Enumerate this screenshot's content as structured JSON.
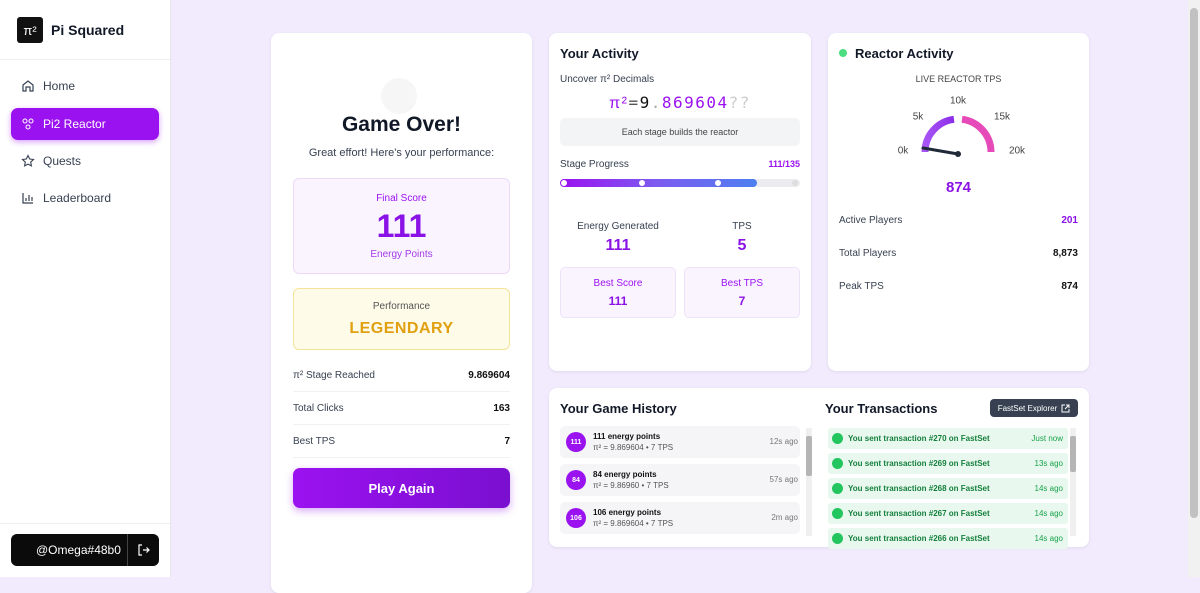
{
  "sidebar": {
    "logo": "π²",
    "brand": "Pi Squared",
    "nav": [
      "Home",
      "Pi2 Reactor",
      "Quests",
      "Leaderboard"
    ],
    "user": "@Omega#48b0"
  },
  "game_over": {
    "title": "Game Over!",
    "subtitle": "Great effort! Here's your performance:",
    "final_score": {
      "label": "Final Score",
      "value": 111,
      "unit": "Energy Points"
    },
    "performance": {
      "label": "Performance",
      "value": "LEGENDARY"
    },
    "stats": [
      {
        "label": "π² Stage Reached",
        "value": "9.869604"
      },
      {
        "label": "Total Clicks",
        "value": 163
      },
      {
        "label": "Best TPS",
        "value": 7
      }
    ],
    "button": "Play Again"
  },
  "activity": {
    "title": "Your Activity",
    "decimals_label": "Uncover π² Decimals",
    "pi_symbol": "π²",
    "equals": "=",
    "integer": "9",
    "dot": ".",
    "decimals": "869604",
    "hidden": "??",
    "hint": "Each stage builds the reactor",
    "progress_label": "Stage Progress",
    "progress": "111/135",
    "energy_label": "Energy Generated",
    "energy": 111,
    "tps_label": "TPS",
    "tps": 5,
    "best_score_label": "Best Score",
    "best_score": 111,
    "best_tps_label": "Best TPS",
    "best_tps": 7
  },
  "reactor": {
    "title": "Reactor Activity",
    "gauge_label": "LIVE REACTOR TPS",
    "gauge_ticks": [
      "0k",
      "5k",
      "10k",
      "15k",
      "20k"
    ],
    "tps": 874,
    "stats": [
      {
        "label": "Active Players",
        "value": 201
      },
      {
        "label": "Total Players",
        "value": "8,873"
      },
      {
        "label": "Peak TPS",
        "value": 874
      }
    ]
  },
  "history": {
    "title": "Your Game History",
    "items": [
      {
        "badge": 111,
        "title": "111 energy points",
        "detail": "π² = 9.869604 • 7 TPS",
        "time": "12s ago"
      },
      {
        "badge": 84,
        "title": "84 energy points",
        "detail": "π² = 9.86960 • 7 TPS",
        "time": "57s ago"
      },
      {
        "badge": 106,
        "title": "106 energy points",
        "detail": "π² = 9.869604 • 7 TPS",
        "time": "2m ago"
      }
    ]
  },
  "transactions": {
    "title": "Your Transactions",
    "explorer": "FastSet Explorer",
    "items": [
      {
        "text": "You sent transaction #270 on FastSet",
        "time": "Just now"
      },
      {
        "text": "You sent transaction #269 on FastSet",
        "time": "13s ago"
      },
      {
        "text": "You sent transaction #268 on FastSet",
        "time": "14s ago"
      },
      {
        "text": "You sent transaction #267 on FastSet",
        "time": "14s ago"
      },
      {
        "text": "You sent transaction #266 on FastSet",
        "time": "14s ago"
      }
    ]
  }
}
